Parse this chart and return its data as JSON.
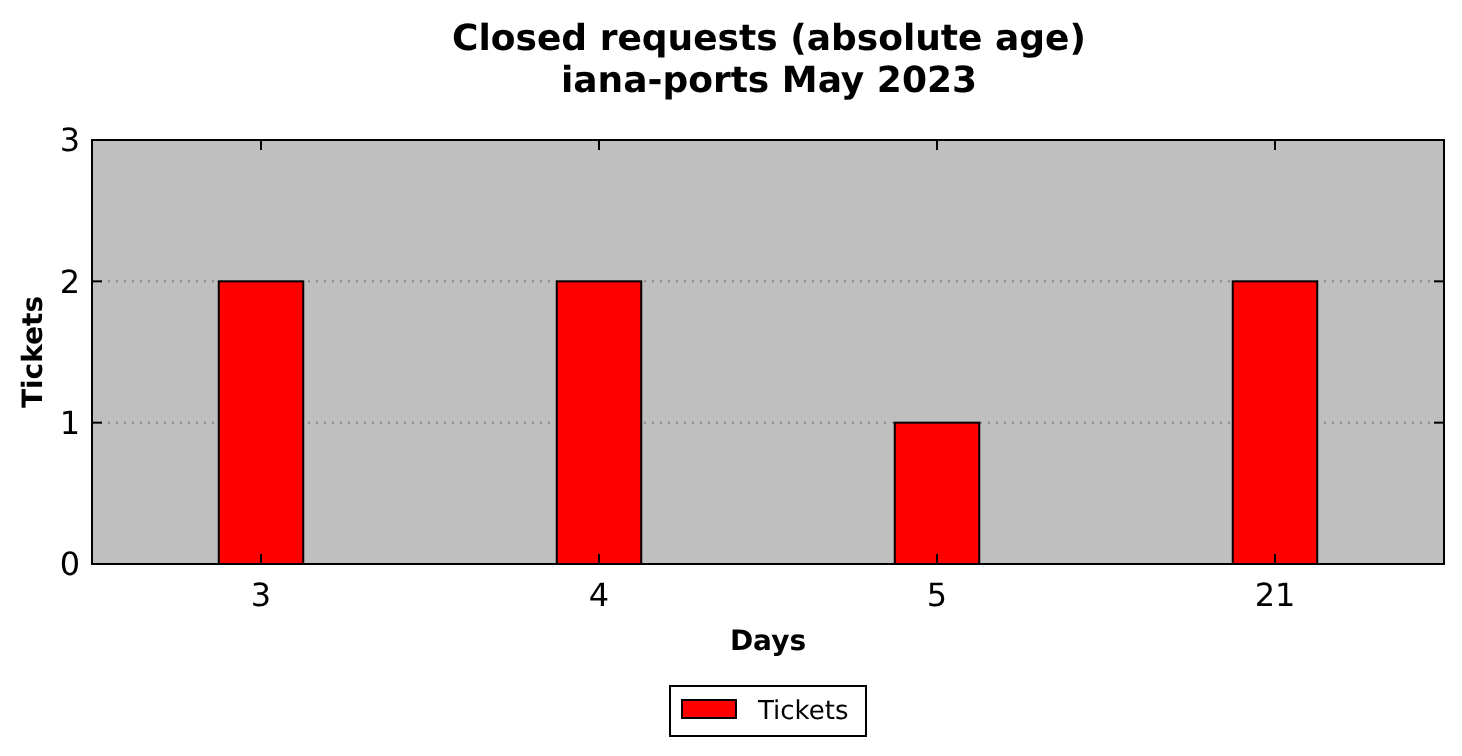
{
  "chart_data": {
    "type": "bar",
    "title": "Closed requests (absolute age)\niana-ports May 2023",
    "xlabel": "Days",
    "ylabel": "Tickets",
    "categories": [
      "3",
      "4",
      "5",
      "21"
    ],
    "series": [
      {
        "name": "Tickets",
        "color": "#ff0000",
        "values": [
          2,
          2,
          1,
          2
        ]
      }
    ],
    "ylim": [
      0,
      3
    ],
    "yticks": [
      0,
      1,
      2,
      3
    ],
    "grid": "y",
    "legend": "bottom"
  }
}
